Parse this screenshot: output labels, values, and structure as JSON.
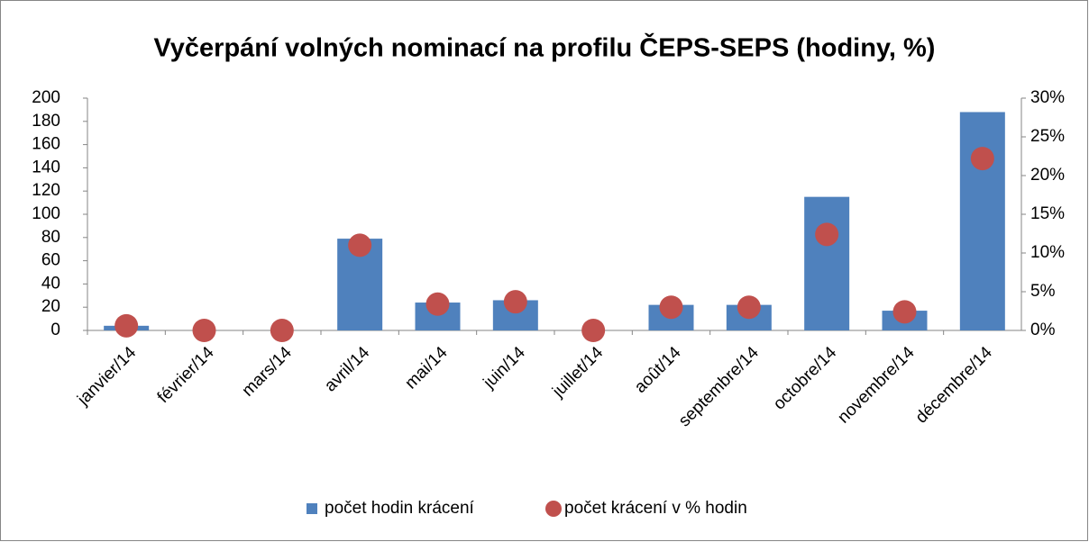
{
  "chart_data": {
    "type": "bar",
    "title": "Vyčerpání volných nominací na profilu ČEPS-SEPS (hodiny, %)",
    "categories": [
      "janvier/14",
      "février/14",
      "mars/14",
      "avril/14",
      "mai/14",
      "juin/14",
      "juillet/14",
      "août/14",
      "septembre/14",
      "octobre/14",
      "novembre/14",
      "décembre/14"
    ],
    "series": [
      {
        "name": "počet hodin krácení",
        "type": "bar",
        "color": "#4f81bd",
        "values": [
          4,
          0,
          0,
          79,
          24,
          26,
          0,
          22,
          22,
          115,
          17,
          188
        ]
      },
      {
        "name": "počet krácení v % hodin",
        "type": "scatter",
        "axis": "y2",
        "color": "#c0504d",
        "values": [
          0.6,
          0,
          0,
          11,
          3.4,
          3.7,
          0,
          3,
          3,
          12.4,
          2.4,
          22.2
        ]
      }
    ],
    "ylim": [
      0,
      200
    ],
    "yticks": [
      0,
      20,
      40,
      60,
      80,
      100,
      120,
      140,
      160,
      180,
      200
    ],
    "y2lim": [
      0,
      30
    ],
    "y2ticks": [
      {
        "value": 0,
        "label": "0%"
      },
      {
        "value": 5,
        "label": "5%"
      },
      {
        "value": 10,
        "label": "10%"
      },
      {
        "value": 15,
        "label": "15%"
      },
      {
        "value": 20,
        "label": "20%"
      },
      {
        "value": 25,
        "label": "25%"
      },
      {
        "value": 30,
        "label": "30%"
      }
    ],
    "grid": false,
    "legend": "bottom"
  }
}
